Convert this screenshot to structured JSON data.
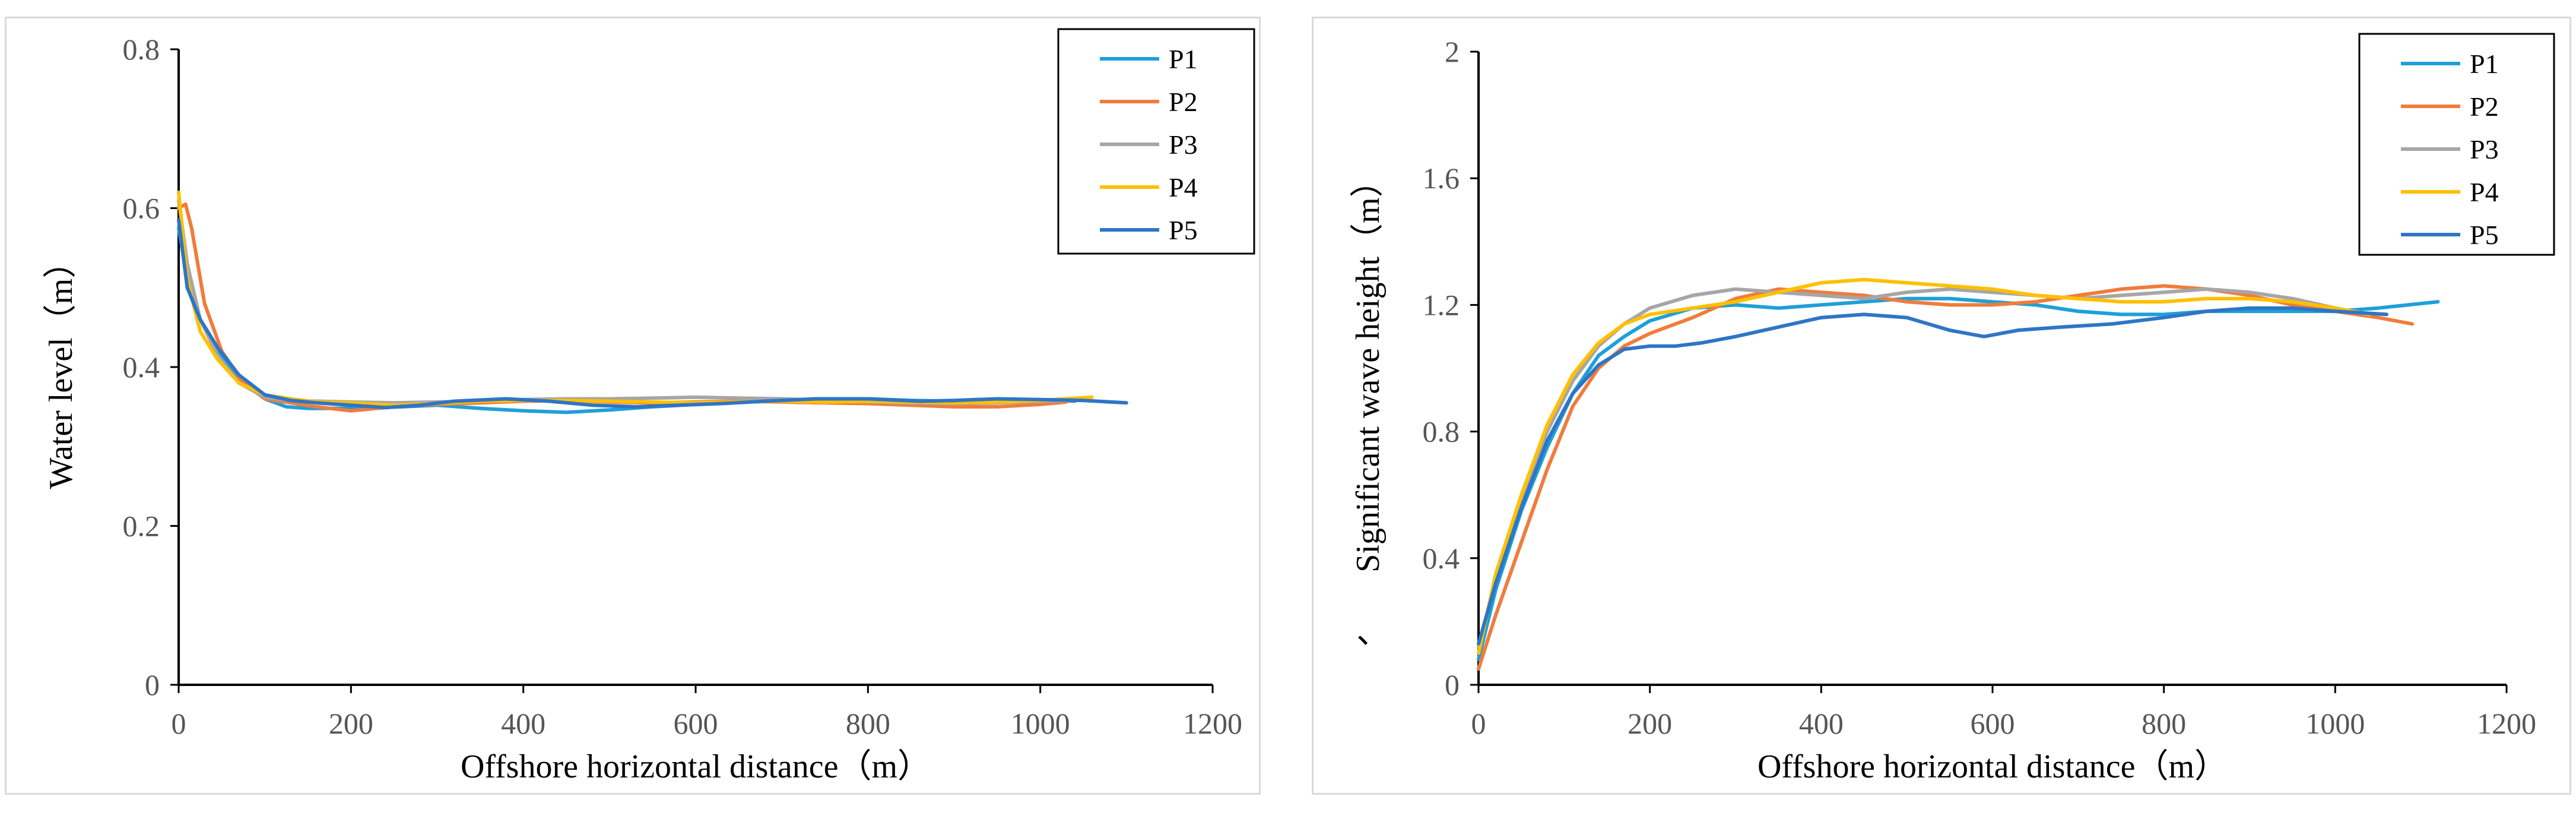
{
  "chart_data": [
    {
      "type": "line",
      "xlabel": "Offshore horizontal distance（m）",
      "ylabel": "Water level（m）",
      "xlim": [
        0,
        1200
      ],
      "ylim": [
        0,
        0.8
      ],
      "xticks": [
        0,
        200,
        400,
        600,
        800,
        1000,
        1200
      ],
      "yticks": [
        0,
        0.2,
        0.4,
        0.6,
        0.8
      ],
      "ytick_labels": [
        "0",
        "0.2",
        "0.4",
        "0.6",
        "0.8"
      ],
      "legend_position": "top-right",
      "grid": false,
      "series": [
        {
          "name": "P1",
          "color": "#1ea0d8",
          "x": [
            0,
            10,
            25,
            45,
            70,
            100,
            125,
            150,
            200,
            260,
            300,
            350,
            400,
            450,
            500,
            550,
            600,
            650,
            700,
            750,
            800,
            850,
            900,
            950,
            1000,
            1040
          ],
          "y": [
            0.575,
            0.51,
            0.46,
            0.42,
            0.385,
            0.36,
            0.35,
            0.348,
            0.348,
            0.35,
            0.352,
            0.348,
            0.345,
            0.343,
            0.346,
            0.35,
            0.353,
            0.356,
            0.358,
            0.36,
            0.36,
            0.358,
            0.357,
            0.358,
            0.358,
            0.357
          ]
        },
        {
          "name": "P2",
          "color": "#f07c3c",
          "x": [
            0,
            8,
            15,
            30,
            50,
            75,
            100,
            130,
            160,
            200,
            250,
            300,
            350,
            400,
            450,
            500,
            550,
            600,
            650,
            700,
            750,
            800,
            850,
            900,
            950,
            1000,
            1030
          ],
          "y": [
            0.6,
            0.605,
            0.575,
            0.48,
            0.42,
            0.38,
            0.36,
            0.355,
            0.35,
            0.345,
            0.35,
            0.353,
            0.355,
            0.357,
            0.358,
            0.356,
            0.355,
            0.356,
            0.357,
            0.356,
            0.355,
            0.354,
            0.352,
            0.35,
            0.35,
            0.353,
            0.356
          ]
        },
        {
          "name": "P3",
          "color": "#a6a6a6",
          "x": [
            0,
            10,
            25,
            45,
            70,
            100,
            130,
            160,
            200,
            250,
            300,
            350,
            400,
            450,
            500,
            550,
            600,
            650,
            700,
            750,
            800,
            850,
            900,
            950,
            1000,
            1040
          ],
          "y": [
            0.61,
            0.53,
            0.46,
            0.415,
            0.38,
            0.362,
            0.358,
            0.357,
            0.356,
            0.355,
            0.356,
            0.357,
            0.359,
            0.36,
            0.36,
            0.361,
            0.362,
            0.361,
            0.36,
            0.358,
            0.356,
            0.355,
            0.354,
            0.355,
            0.357,
            0.358
          ]
        },
        {
          "name": "P4",
          "color": "#ffc000",
          "x": [
            0,
            10,
            25,
            45,
            70,
            100,
            130,
            160,
            200,
            250,
            300,
            350,
            400,
            450,
            500,
            550,
            600,
            650,
            700,
            750,
            800,
            850,
            900,
            950,
            1000,
            1060
          ],
          "y": [
            0.62,
            0.51,
            0.445,
            0.41,
            0.38,
            0.365,
            0.36,
            0.356,
            0.355,
            0.352,
            0.354,
            0.357,
            0.358,
            0.358,
            0.357,
            0.356,
            0.355,
            0.356,
            0.357,
            0.356,
            0.357,
            0.356,
            0.355,
            0.356,
            0.358,
            0.362
          ]
        },
        {
          "name": "P5",
          "color": "#2e75c6",
          "x": [
            0,
            10,
            25,
            45,
            70,
            100,
            130,
            160,
            200,
            240,
            280,
            320,
            380,
            430,
            480,
            530,
            580,
            630,
            680,
            740,
            800,
            860,
            900,
            950,
            1000,
            1050,
            1100
          ],
          "y": [
            0.585,
            0.5,
            0.46,
            0.425,
            0.39,
            0.365,
            0.358,
            0.355,
            0.352,
            0.349,
            0.352,
            0.357,
            0.36,
            0.357,
            0.352,
            0.35,
            0.352,
            0.354,
            0.357,
            0.36,
            0.36,
            0.357,
            0.358,
            0.36,
            0.359,
            0.358,
            0.355
          ]
        }
      ]
    },
    {
      "type": "line",
      "xlabel": "Offshore horizontal distance（m）",
      "ylabel": "Significant wave height（m）",
      "ylabel_prefix": "、",
      "xlim": [
        0,
        1200
      ],
      "ylim": [
        0,
        2
      ],
      "xticks": [
        0,
        200,
        400,
        600,
        800,
        1000,
        1200
      ],
      "yticks": [
        0,
        0.4,
        0.8,
        1.2,
        1.6,
        2
      ],
      "ytick_labels": [
        "0",
        "0.4",
        "0.8",
        "1.2",
        "1.6",
        "2"
      ],
      "legend_position": "top-right",
      "grid": false,
      "series": [
        {
          "name": "P1",
          "color": "#1ea0d8",
          "x": [
            0,
            20,
            50,
            80,
            110,
            140,
            170,
            200,
            250,
            300,
            350,
            400,
            450,
            500,
            550,
            600,
            650,
            700,
            750,
            800,
            850,
            900,
            950,
            1000,
            1050,
            1120
          ],
          "y": [
            0.08,
            0.3,
            0.55,
            0.75,
            0.92,
            1.04,
            1.1,
            1.15,
            1.19,
            1.2,
            1.19,
            1.2,
            1.21,
            1.22,
            1.22,
            1.21,
            1.2,
            1.18,
            1.17,
            1.17,
            1.18,
            1.18,
            1.18,
            1.18,
            1.19,
            1.21
          ]
        },
        {
          "name": "P2",
          "color": "#f07c3c",
          "x": [
            0,
            20,
            50,
            80,
            110,
            140,
            170,
            200,
            250,
            300,
            350,
            400,
            450,
            500,
            550,
            600,
            650,
            700,
            750,
            800,
            850,
            900,
            950,
            1000,
            1050,
            1090
          ],
          "y": [
            0.05,
            0.22,
            0.45,
            0.68,
            0.88,
            1.0,
            1.07,
            1.11,
            1.16,
            1.22,
            1.25,
            1.24,
            1.23,
            1.21,
            1.2,
            1.2,
            1.21,
            1.23,
            1.25,
            1.26,
            1.25,
            1.23,
            1.2,
            1.18,
            1.16,
            1.14
          ]
        },
        {
          "name": "P3",
          "color": "#a6a6a6",
          "x": [
            0,
            20,
            50,
            80,
            110,
            140,
            170,
            200,
            250,
            300,
            350,
            400,
            450,
            500,
            550,
            600,
            650,
            700,
            750,
            800,
            850,
            900,
            950,
            1000,
            1040
          ],
          "y": [
            0.12,
            0.33,
            0.58,
            0.8,
            0.96,
            1.07,
            1.14,
            1.19,
            1.23,
            1.25,
            1.24,
            1.23,
            1.22,
            1.24,
            1.25,
            1.24,
            1.23,
            1.22,
            1.23,
            1.24,
            1.25,
            1.24,
            1.22,
            1.19,
            1.17
          ]
        },
        {
          "name": "P4",
          "color": "#ffc000",
          "x": [
            0,
            20,
            50,
            80,
            110,
            140,
            170,
            200,
            250,
            300,
            350,
            400,
            450,
            500,
            550,
            600,
            650,
            700,
            750,
            800,
            850,
            900,
            950,
            1000,
            1040
          ],
          "y": [
            0.1,
            0.35,
            0.6,
            0.82,
            0.98,
            1.08,
            1.14,
            1.17,
            1.19,
            1.21,
            1.24,
            1.27,
            1.28,
            1.27,
            1.26,
            1.25,
            1.23,
            1.22,
            1.21,
            1.21,
            1.22,
            1.22,
            1.21,
            1.19,
            1.17
          ]
        },
        {
          "name": "P5",
          "color": "#2e75c6",
          "x": [
            0,
            20,
            50,
            80,
            110,
            140,
            170,
            200,
            230,
            260,
            300,
            350,
            400,
            450,
            500,
            550,
            590,
            630,
            680,
            740,
            800,
            850,
            900,
            950,
            1000,
            1060
          ],
          "y": [
            0.13,
            0.32,
            0.56,
            0.77,
            0.92,
            1.01,
            1.06,
            1.07,
            1.07,
            1.08,
            1.1,
            1.13,
            1.16,
            1.17,
            1.16,
            1.12,
            1.1,
            1.12,
            1.13,
            1.14,
            1.16,
            1.18,
            1.19,
            1.19,
            1.18,
            1.17
          ]
        }
      ]
    }
  ]
}
